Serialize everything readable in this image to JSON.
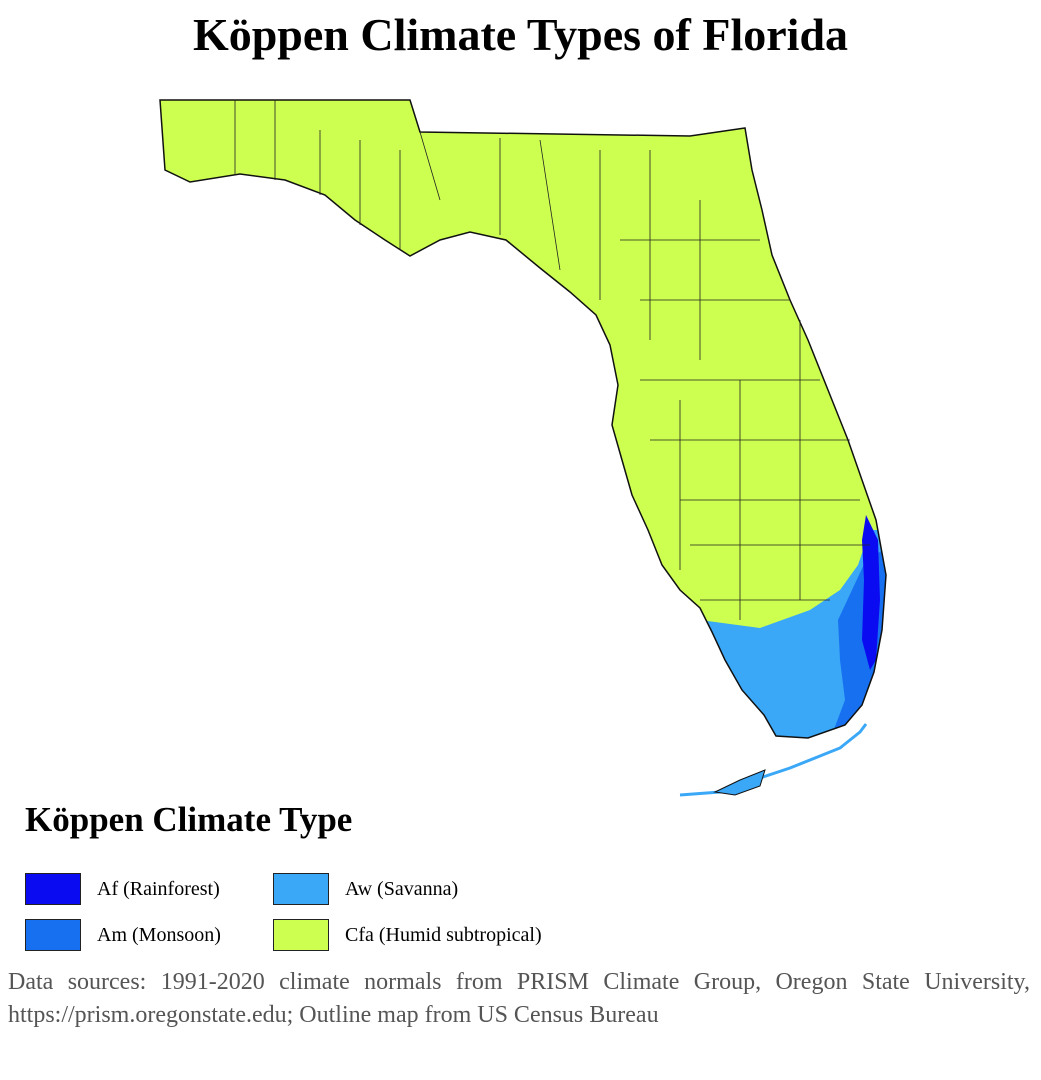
{
  "title": "Köppen Climate Types of Florida",
  "legend": {
    "title": "Köppen Climate Type",
    "items": [
      {
        "label": "Af (Rainforest)",
        "color": "#0b0bf2"
      },
      {
        "label": "Aw (Savanna)",
        "color": "#3aa8f7"
      },
      {
        "label": "Am (Monsoon)",
        "color": "#1670f0"
      },
      {
        "label": "Cfa (Humid subtropical)",
        "color": "#ccff4f"
      }
    ]
  },
  "source": "Data sources: 1991-2020 climate normals from PRISM Climate Group, Oregon State University, https://prism.oregonstate.edu; Outline map from US Census Bureau"
}
